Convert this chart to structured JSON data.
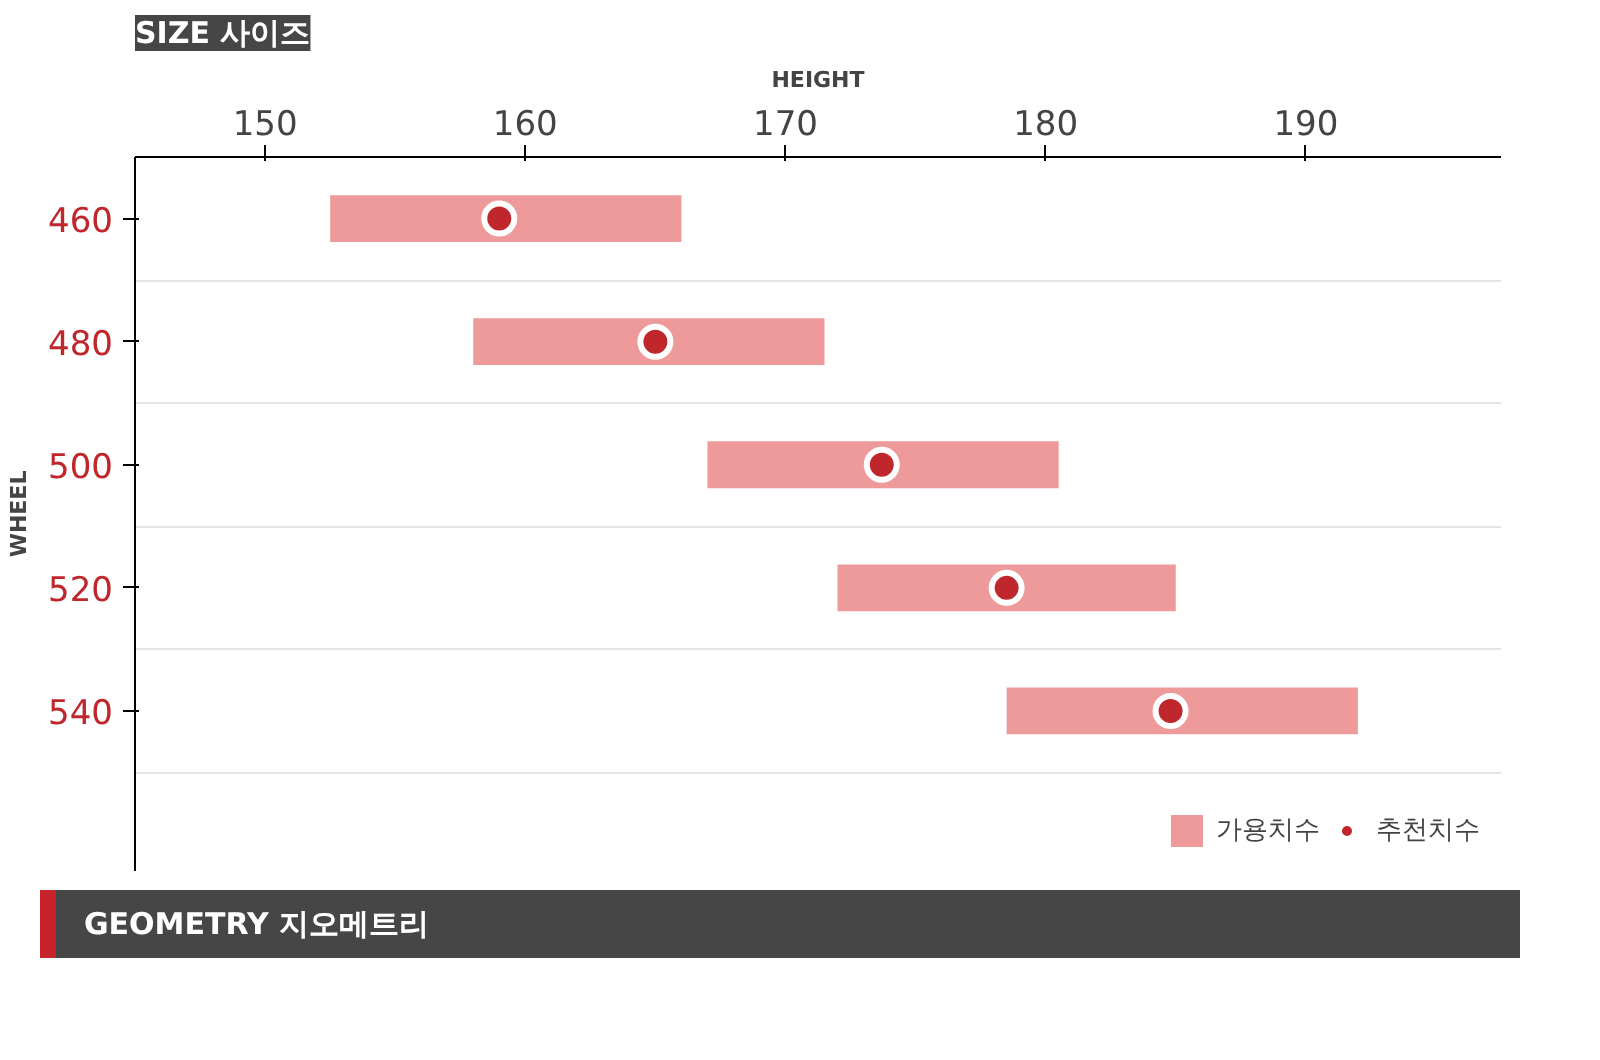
{
  "chart_data": {
    "type": "bar",
    "orientation": "horizontal",
    "title": "SIZE 사이즈",
    "xlabel": "HEIGHT",
    "ylabel": "WHEEL",
    "categories": [
      "460",
      "480",
      "500",
      "520",
      "540"
    ],
    "series": [
      {
        "name": "가용치수",
        "color": "#ee9a9a",
        "base": [
          152.5,
          158,
          167,
          172,
          178.5
        ],
        "values": [
          13.5,
          13.5,
          13.5,
          13,
          13.5
        ]
      },
      {
        "name": "추천치수",
        "type": "scatter",
        "color": "#c0272d",
        "x": [
          "460",
          "480",
          "500",
          "520",
          "540"
        ],
        "values": [
          159,
          165,
          173.7,
          178.5,
          184.8
        ]
      }
    ],
    "xlim": [
      145,
      197.5
    ],
    "xticks": [
      150,
      160,
      170,
      180,
      190
    ],
    "grid": "y",
    "legend": "bottom right",
    "marker": "circle",
    "annotations": [
      "GEOMETRY 지오메트리"
    ]
  }
}
